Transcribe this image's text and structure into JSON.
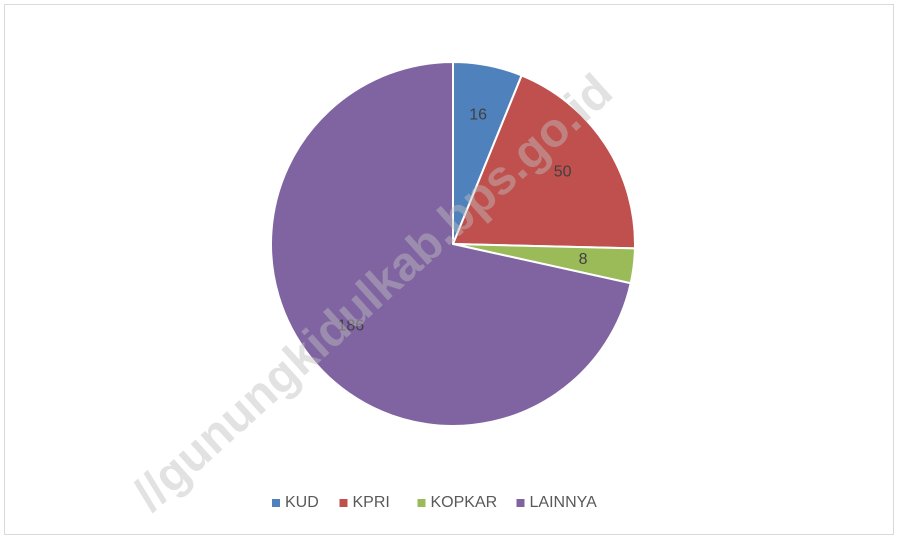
{
  "chart_data": {
    "type": "pie",
    "categories": [
      "KUD",
      "KPRI",
      "KOPKAR",
      "LAINNYA"
    ],
    "values": [
      16,
      50,
      8,
      186
    ],
    "colors": [
      "#4f81bd",
      "#c0504d",
      "#9bbb59",
      "#8064a2"
    ],
    "legend": "bottom",
    "watermark": "//gunungkidulkab.bps.go.id"
  }
}
